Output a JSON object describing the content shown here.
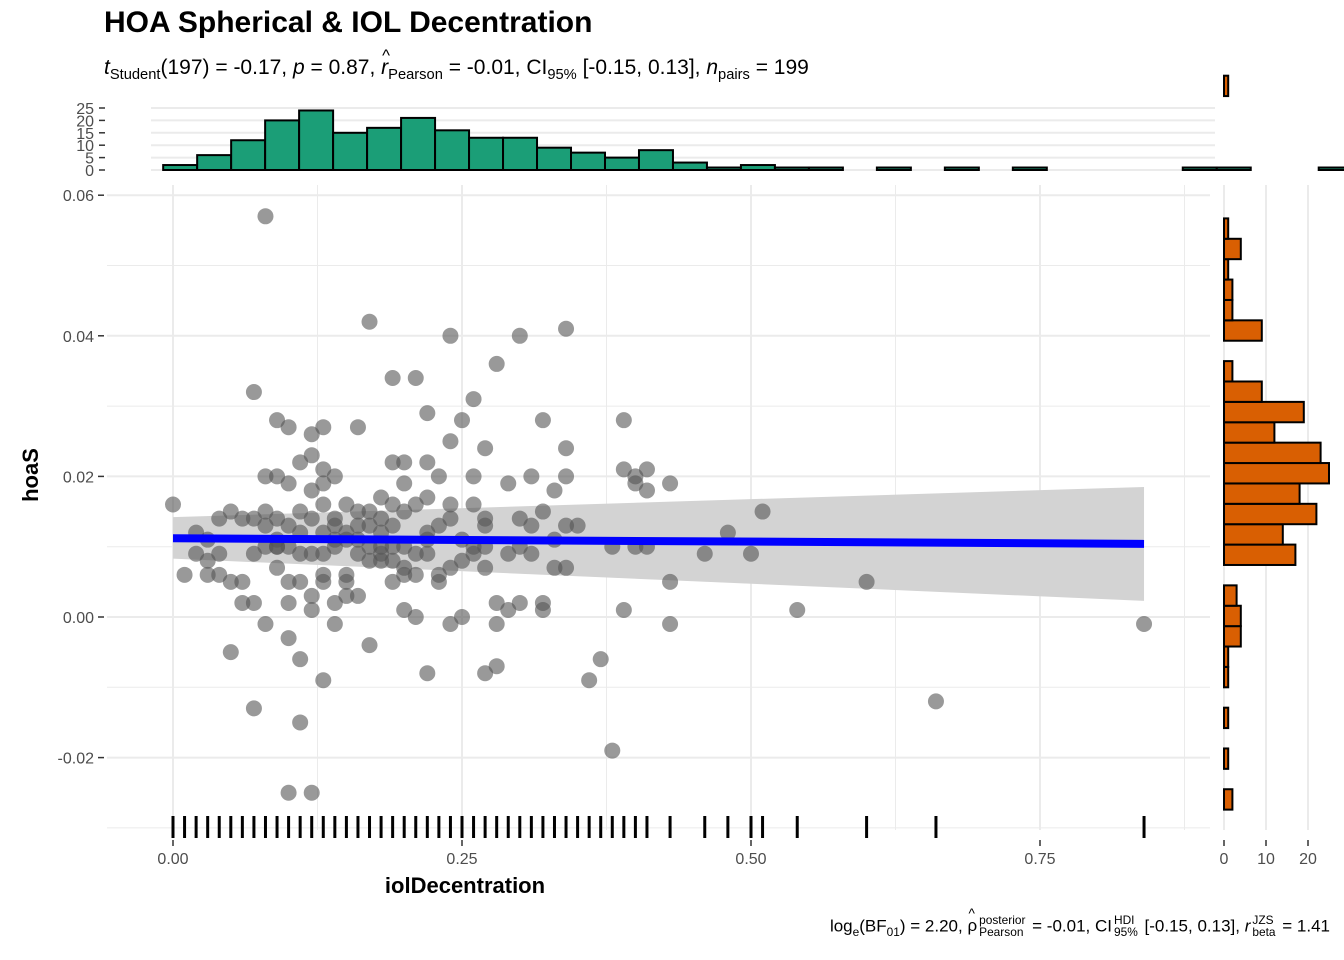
{
  "chart_data": {
    "type": "scatter",
    "title": "HOA Spherical & IOL Decentration",
    "subtitle": {
      "t_label": "t",
      "t_sub": "Student",
      "t_value": "(197) = -0.17, ",
      "p_label": "p",
      "p_value": " = 0.87, ",
      "r_label": "r",
      "r_sub": "Pearson",
      "r_value": " = -0.01, CI",
      "ci_sub": "95%",
      "ci_value": " [-0.15, 0.13], ",
      "n_label": "n",
      "n_sub": "pairs",
      "n_value": " = 199"
    },
    "caption": {
      "log_label": "log",
      "log_sub": "e",
      "bf_open": "(BF",
      "bf_sub": "01",
      "bf_value": ") = 2.20, ",
      "rho_label": "ρ",
      "rho_sup": "posterior",
      "rho_sub": "Pearson",
      "rho_value": " = -0.01, CI",
      "ci_sup": "HDI",
      "ci_sub": "95%",
      "ci_value": " [-0.15, 0.13], ",
      "rb_label": "r",
      "rb_sup": "JZS",
      "rb_sub": "beta",
      "rb_value": " = 1.41"
    },
    "xlabel": "iolDecentration",
    "ylabel": "hoaS",
    "xlim": [
      -0.03,
      0.88
    ],
    "ylim": [
      -0.03,
      0.061
    ],
    "xticks": [
      "0.00",
      "0.25",
      "0.50",
      "0.75"
    ],
    "yticks": [
      "-0.02",
      "0.00",
      "0.02",
      "0.04",
      "0.06"
    ],
    "xtick_values": [
      0.0,
      0.25,
      0.5,
      0.75
    ],
    "ytick_values": [
      -0.02,
      0.0,
      0.02,
      0.04,
      0.06
    ],
    "points": [
      [
        0.08,
        0.057
      ],
      [
        0.17,
        0.042
      ],
      [
        0.24,
        0.04
      ],
      [
        0.3,
        0.04
      ],
      [
        0.34,
        0.041
      ],
      [
        0.28,
        0.036
      ],
      [
        0.07,
        0.032
      ],
      [
        0.19,
        0.034
      ],
      [
        0.21,
        0.034
      ],
      [
        0.26,
        0.031
      ],
      [
        0.09,
        0.028
      ],
      [
        0.1,
        0.027
      ],
      [
        0.12,
        0.026
      ],
      [
        0.13,
        0.027
      ],
      [
        0.16,
        0.027
      ],
      [
        0.22,
        0.029
      ],
      [
        0.25,
        0.028
      ],
      [
        0.32,
        0.028
      ],
      [
        0.39,
        0.028
      ],
      [
        0.24,
        0.025
      ],
      [
        0.27,
        0.024
      ],
      [
        0.34,
        0.024
      ],
      [
        0.12,
        0.023
      ],
      [
        0.13,
        0.021
      ],
      [
        0.08,
        0.02
      ],
      [
        0.09,
        0.02
      ],
      [
        0.11,
        0.022
      ],
      [
        0.19,
        0.022
      ],
      [
        0.2,
        0.022
      ],
      [
        0.22,
        0.022
      ],
      [
        0.23,
        0.02
      ],
      [
        0.26,
        0.02
      ],
      [
        0.31,
        0.02
      ],
      [
        0.34,
        0.02
      ],
      [
        0.39,
        0.021
      ],
      [
        0.41,
        0.021
      ],
      [
        0.4,
        0.02
      ],
      [
        0.43,
        0.019
      ],
      [
        0.4,
        0.019
      ],
      [
        0.41,
        0.018
      ],
      [
        0.33,
        0.018
      ],
      [
        0.29,
        0.019
      ],
      [
        0.2,
        0.019
      ],
      [
        0.18,
        0.017
      ],
      [
        0.14,
        0.02
      ],
      [
        0.13,
        0.019
      ],
      [
        0.12,
        0.018
      ],
      [
        0.1,
        0.019
      ],
      [
        0.0,
        0.016
      ],
      [
        0.05,
        0.015
      ],
      [
        0.07,
        0.014
      ],
      [
        0.08,
        0.015
      ],
      [
        0.09,
        0.014
      ],
      [
        0.11,
        0.015
      ],
      [
        0.14,
        0.014
      ],
      [
        0.15,
        0.016
      ],
      [
        0.16,
        0.015
      ],
      [
        0.18,
        0.014
      ],
      [
        0.19,
        0.016
      ],
      [
        0.21,
        0.016
      ],
      [
        0.22,
        0.017
      ],
      [
        0.24,
        0.016
      ],
      [
        0.26,
        0.016
      ],
      [
        0.27,
        0.014
      ],
      [
        0.3,
        0.014
      ],
      [
        0.32,
        0.015
      ],
      [
        0.34,
        0.013
      ],
      [
        0.24,
        0.014
      ],
      [
        0.2,
        0.015
      ],
      [
        0.12,
        0.014
      ],
      [
        0.04,
        0.014
      ],
      [
        0.02,
        0.012
      ],
      [
        0.08,
        0.013
      ],
      [
        0.1,
        0.013
      ],
      [
        0.11,
        0.012
      ],
      [
        0.13,
        0.012
      ],
      [
        0.16,
        0.011
      ],
      [
        0.17,
        0.01
      ],
      [
        0.14,
        0.011
      ],
      [
        0.18,
        0.01
      ],
      [
        0.22,
        0.011
      ],
      [
        0.25,
        0.011
      ],
      [
        0.27,
        0.01
      ],
      [
        0.3,
        0.01
      ],
      [
        0.33,
        0.011
      ],
      [
        0.38,
        0.01
      ],
      [
        0.4,
        0.01
      ],
      [
        0.46,
        0.009
      ],
      [
        0.48,
        0.012
      ],
      [
        0.51,
        0.015
      ],
      [
        0.5,
        0.009
      ],
      [
        0.6,
        0.005
      ],
      [
        0.54,
        0.001
      ],
      [
        0.66,
        -0.012
      ],
      [
        0.84,
        -0.001
      ],
      [
        0.01,
        0.006
      ],
      [
        0.03,
        0.008
      ],
      [
        0.04,
        0.006
      ],
      [
        0.05,
        0.005
      ],
      [
        0.06,
        0.005
      ],
      [
        0.07,
        0.009
      ],
      [
        0.08,
        0.01
      ],
      [
        0.09,
        0.007
      ],
      [
        0.1,
        0.005
      ],
      [
        0.11,
        0.005
      ],
      [
        0.12,
        0.009
      ],
      [
        0.13,
        0.006
      ],
      [
        0.15,
        0.005
      ],
      [
        0.16,
        0.009
      ],
      [
        0.17,
        0.008
      ],
      [
        0.18,
        0.009
      ],
      [
        0.19,
        0.01
      ],
      [
        0.2,
        0.007
      ],
      [
        0.21,
        0.006
      ],
      [
        0.22,
        0.009
      ],
      [
        0.23,
        0.006
      ],
      [
        0.25,
        0.008
      ],
      [
        0.26,
        0.009
      ],
      [
        0.27,
        0.007
      ],
      [
        0.29,
        0.009
      ],
      [
        0.31,
        0.009
      ],
      [
        0.33,
        0.007
      ],
      [
        0.34,
        0.007
      ],
      [
        0.43,
        0.005
      ],
      [
        0.39,
        0.001
      ],
      [
        0.43,
        -0.001
      ],
      [
        0.28,
        0.002
      ],
      [
        0.29,
        0.001
      ],
      [
        0.3,
        0.002
      ],
      [
        0.32,
        0.001
      ],
      [
        0.25,
        0.0
      ],
      [
        0.2,
        0.001
      ],
      [
        0.21,
        0.0
      ],
      [
        0.15,
        0.003
      ],
      [
        0.14,
        0.002
      ],
      [
        0.12,
        0.003
      ],
      [
        0.1,
        0.002
      ],
      [
        0.08,
        -0.001
      ],
      [
        0.07,
        0.002
      ],
      [
        0.06,
        0.002
      ],
      [
        0.13,
        0.005
      ],
      [
        0.14,
        -0.001
      ],
      [
        0.17,
        -0.004
      ],
      [
        0.19,
        0.005
      ],
      [
        0.2,
        0.006
      ],
      [
        0.22,
        -0.008
      ],
      [
        0.24,
        -0.001
      ],
      [
        0.27,
        -0.008
      ],
      [
        0.28,
        -0.007
      ],
      [
        0.28,
        -0.001
      ],
      [
        0.36,
        -0.009
      ],
      [
        0.37,
        -0.006
      ],
      [
        0.38,
        -0.019
      ],
      [
        0.05,
        -0.005
      ],
      [
        0.07,
        -0.013
      ],
      [
        0.1,
        -0.003
      ],
      [
        0.11,
        -0.006
      ],
      [
        0.13,
        -0.009
      ],
      [
        0.11,
        -0.015
      ],
      [
        0.1,
        -0.025
      ],
      [
        0.12,
        -0.025
      ],
      [
        0.03,
        0.006
      ],
      [
        0.02,
        0.009
      ],
      [
        0.09,
        0.01
      ],
      [
        0.15,
        0.006
      ],
      [
        0.16,
        0.003
      ],
      [
        0.18,
        0.008
      ],
      [
        0.23,
        0.013
      ],
      [
        0.26,
        0.01
      ],
      [
        0.27,
        0.013
      ],
      [
        0.31,
        0.013
      ],
      [
        0.35,
        0.013
      ],
      [
        0.41,
        0.01
      ],
      [
        0.09,
        0.01
      ],
      [
        0.14,
        0.013
      ],
      [
        0.12,
        0.001
      ],
      [
        0.2,
        0.01
      ],
      [
        0.22,
        0.012
      ],
      [
        0.32,
        0.002
      ],
      [
        0.06,
        0.014
      ],
      [
        0.04,
        0.009
      ],
      [
        0.03,
        0.011
      ],
      [
        0.15,
        0.012
      ],
      [
        0.17,
        0.013
      ],
      [
        0.19,
        0.013
      ],
      [
        0.21,
        0.009
      ],
      [
        0.23,
        0.005
      ],
      [
        0.24,
        0.007
      ],
      [
        0.11,
        0.009
      ],
      [
        0.09,
        0.011
      ],
      [
        0.1,
        0.01
      ],
      [
        0.13,
        0.009
      ],
      [
        0.13,
        0.016
      ],
      [
        0.16,
        0.013
      ],
      [
        0.17,
        0.015
      ],
      [
        0.18,
        0.012
      ],
      [
        0.19,
        0.008
      ],
      [
        0.14,
        0.01
      ],
      [
        0.15,
        0.011
      ]
    ],
    "regression": {
      "x": [
        0.0,
        0.84
      ],
      "y": [
        0.0112,
        0.0104
      ],
      "ci_lower": [
        0.0083,
        0.0023
      ],
      "ci_upper": [
        0.0142,
        0.0185
      ]
    },
    "x_histogram": {
      "ticks": [
        "0",
        "5",
        "10",
        "15",
        "20",
        "25"
      ],
      "tick_values": [
        0,
        5,
        10,
        15,
        20,
        25
      ],
      "max": 25,
      "bin_start": -0.0085,
      "bin_width": 0.0294,
      "counts": [
        2,
        6,
        12,
        20,
        24,
        15,
        17,
        21,
        16,
        13,
        13,
        9,
        7,
        5,
        8,
        3,
        1,
        2,
        1,
        1,
        0,
        1,
        0,
        1,
        0,
        1,
        0,
        0,
        0,
        0,
        1,
        1,
        0,
        0,
        1
      ]
    },
    "y_histogram": {
      "ticks": [
        "0",
        "10",
        "20"
      ],
      "tick_values": [
        0,
        10,
        20
      ],
      "max": 24,
      "bin_start": -0.0274,
      "bin_width": 0.0029,
      "counts": [
        2,
        0,
        1,
        0,
        1,
        0,
        1,
        1,
        4,
        4,
        3,
        0,
        17,
        14,
        22,
        18,
        25,
        23,
        12,
        19,
        9,
        2,
        0,
        9,
        2,
        2,
        1,
        4,
        1,
        0,
        0,
        0,
        0,
        0,
        0,
        1
      ]
    },
    "colors": {
      "points": "#555555",
      "line": "#0000ff",
      "ribbon": "#d3d3d3",
      "x_hist": "#1b9e77",
      "y_hist": "#d95f02",
      "grid": "#ebebeb"
    },
    "grid": true
  }
}
